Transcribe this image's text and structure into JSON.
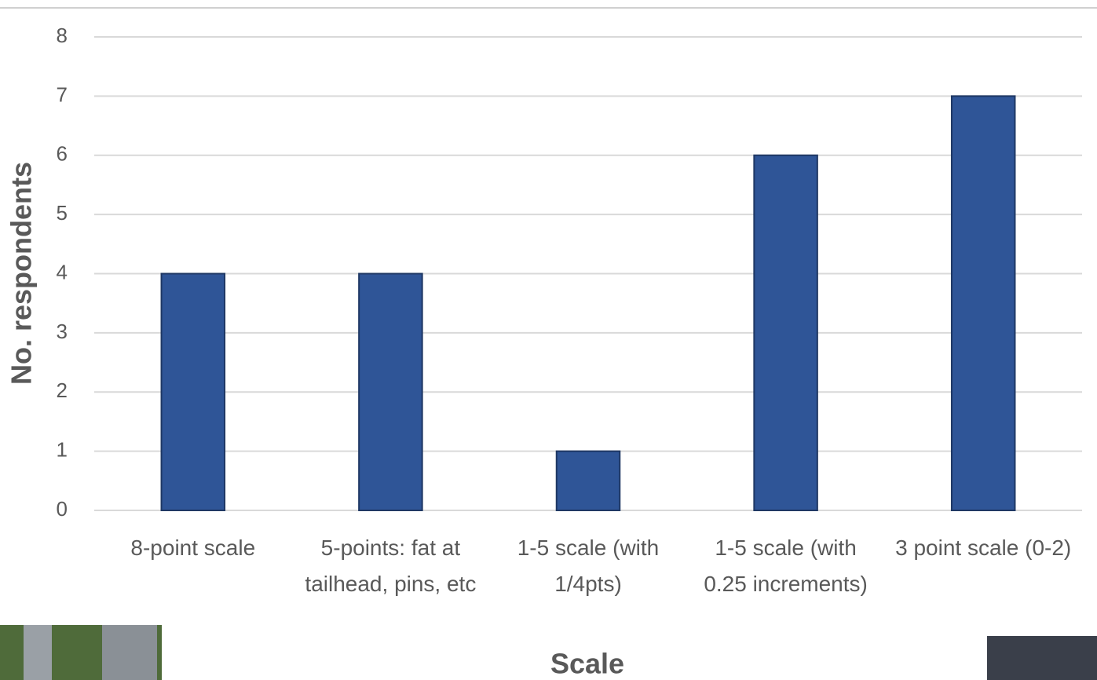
{
  "chart_data": {
    "type": "bar",
    "x_label": "Scale",
    "y_label": "No. respondents",
    "categories": [
      "8-point scale",
      "5-points: fat at tailhead, pins, etc",
      "1-5 scale (with 1/4pts)",
      "1-5 scale (with 0.25 increments)",
      "3 point scale (0-2)"
    ],
    "values": [
      4,
      4,
      1,
      6,
      7
    ],
    "color": "#2f5597",
    "ylim": [
      0,
      8
    ],
    "yticks": [
      0,
      1,
      2,
      3,
      4,
      5,
      6,
      7,
      8
    ],
    "grid": true
  }
}
